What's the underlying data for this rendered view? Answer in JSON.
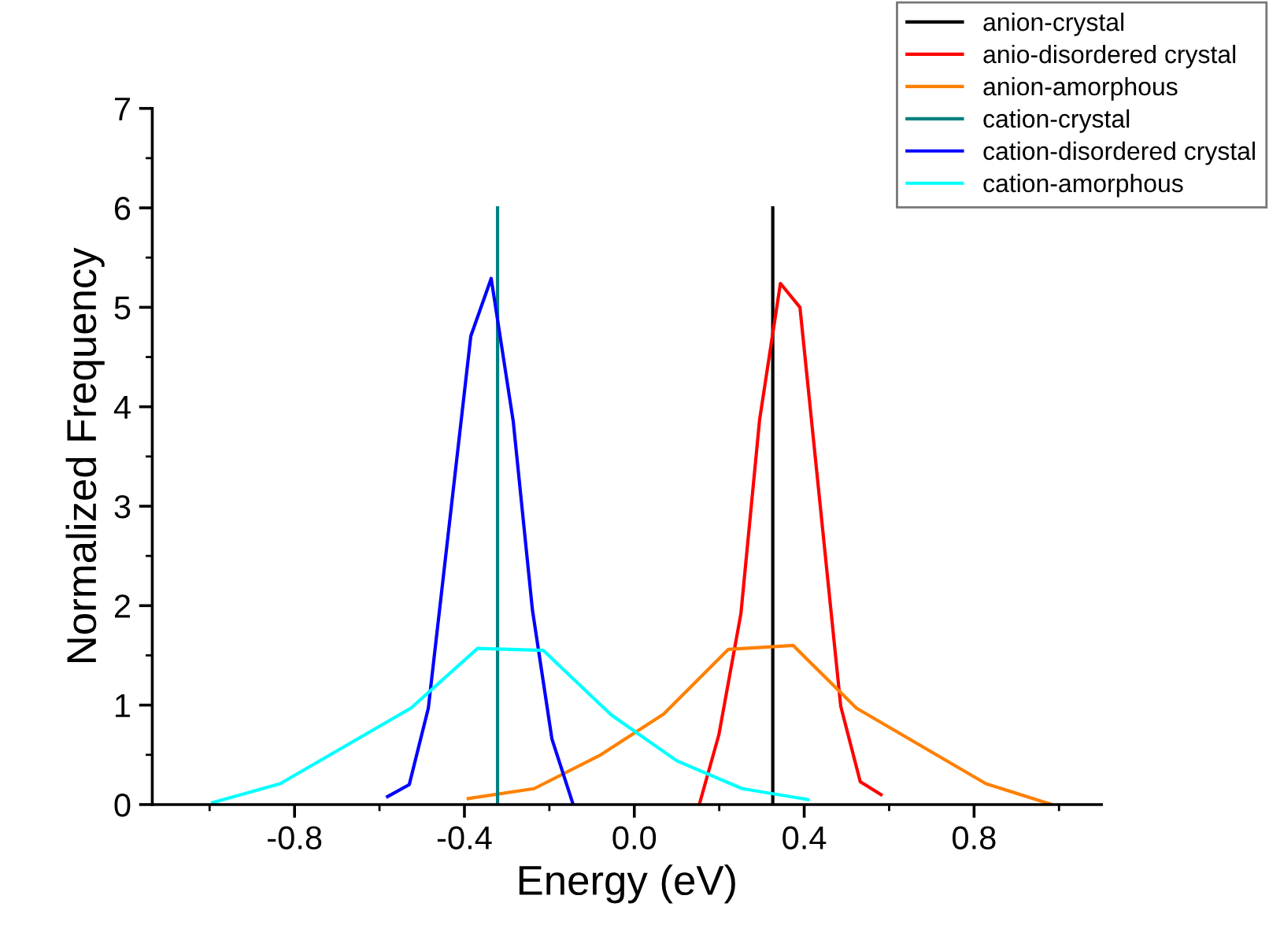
{
  "chart_data": {
    "type": "line",
    "xlabel": "Energy (eV)",
    "ylabel": "Normalized Frequency",
    "xlim": [
      -1.135,
      1.1
    ],
    "ylim": [
      0,
      7
    ],
    "xticks": [
      -0.8,
      -0.4,
      {
        "value": 0,
        "label": "0.0"
      },
      0.4,
      0.8
    ],
    "yticks": [
      0,
      1,
      2,
      3,
      4,
      5,
      6,
      7
    ],
    "grid": false,
    "legend": "top right",
    "marker": "none",
    "line_style": "solid",
    "series": [
      {
        "name": "anion-crystal",
        "color": "#000000",
        "x": [
          0.326,
          0.326
        ],
        "values": [
          0,
          6
        ]
      },
      {
        "name": "anio-disordered crystal",
        "color": "#ff0000",
        "x": [
          0.153,
          0.199,
          0.251,
          0.295,
          0.344,
          0.39,
          0.486,
          0.532,
          0.581
        ],
        "values": [
          0,
          0.7,
          1.92,
          3.87,
          5.24,
          5.0,
          0.99,
          0.23,
          0.1
        ]
      },
      {
        "name": "anion-amorphous",
        "color": "#ff8000",
        "x": [
          -0.391,
          -0.236,
          -0.079,
          0.069,
          0.221,
          0.374,
          0.523,
          0.828,
          0.983
        ],
        "values": [
          0.06,
          0.16,
          0.5,
          0.91,
          1.56,
          1.6,
          0.97,
          0.21,
          0
        ]
      },
      {
        "name": "cation-crystal",
        "color": "#008080",
        "x": [
          -0.322,
          -0.322
        ],
        "values": [
          0,
          6
        ]
      },
      {
        "name": "cation-disordered crystal",
        "color": "#0000ff",
        "x": [
          -0.581,
          -0.53,
          -0.485,
          -0.385,
          -0.337,
          -0.285,
          -0.24,
          -0.194,
          -0.144
        ],
        "values": [
          0.08,
          0.2,
          0.97,
          4.71,
          5.29,
          3.85,
          1.96,
          0.66,
          0
        ]
      },
      {
        "name": "cation-amorphous",
        "color": "#00ffff",
        "x": [
          -0.993,
          -0.834,
          -0.526,
          -0.369,
          -0.214,
          -0.054,
          0.1,
          0.254,
          0.409
        ],
        "values": [
          0.02,
          0.21,
          0.97,
          1.57,
          1.55,
          0.9,
          0.44,
          0.16,
          0.05
        ]
      }
    ]
  }
}
